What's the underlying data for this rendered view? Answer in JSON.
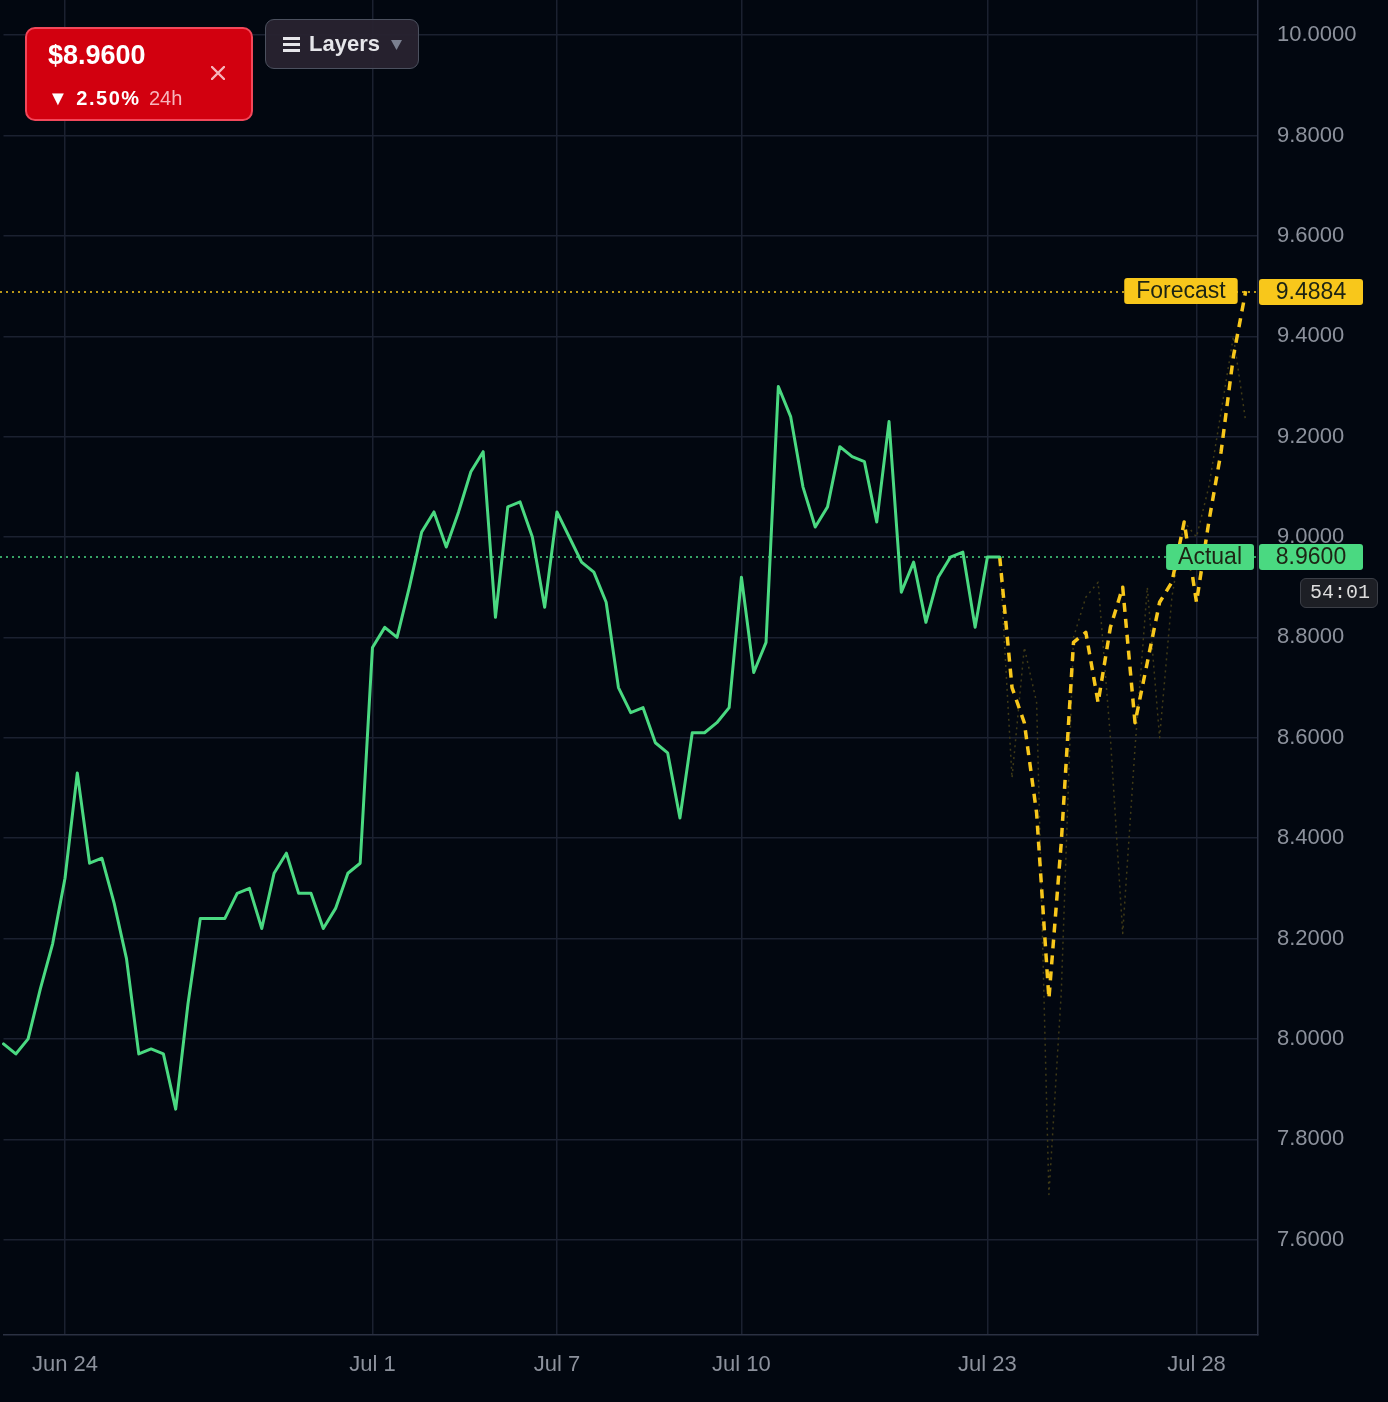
{
  "chart_data": {
    "type": "line",
    "categories": [
      null,
      null,
      null,
      null,
      null,
      "Jun 24",
      null,
      null,
      null,
      null,
      null,
      null,
      null,
      null,
      null,
      null,
      null,
      null,
      null,
      null,
      null,
      null,
      null,
      null,
      null,
      null,
      null,
      null,
      null,
      null,
      "Jul 1",
      null,
      null,
      null,
      null,
      null,
      null,
      null,
      null,
      null,
      null,
      null,
      null,
      null,
      null,
      "Jul 7",
      null,
      null,
      null,
      null,
      null,
      null,
      null,
      null,
      null,
      null,
      null,
      null,
      null,
      null,
      "Jul 10",
      null,
      null,
      null,
      null,
      null,
      null,
      null,
      null,
      null,
      null,
      null,
      null,
      null,
      null,
      null,
      null,
      null,
      null,
      null,
      "Jul 23",
      null,
      null,
      null,
      null,
      null,
      null,
      null,
      null,
      null,
      null,
      null,
      null,
      null,
      null,
      null,
      null,
      "Jul 28",
      null,
      null,
      null,
      null,
      null
    ],
    "series": [
      {
        "name": "Actual",
        "color": "#4ad981",
        "values": [
          7.99,
          7.97,
          8.0,
          8.1,
          8.19,
          8.32,
          8.53,
          8.35,
          8.36,
          8.27,
          8.16,
          7.97,
          7.98,
          7.97,
          7.86,
          8.07,
          8.24,
          8.24,
          8.24,
          8.29,
          8.3,
          8.22,
          8.33,
          8.37,
          8.29,
          8.29,
          8.22,
          8.26,
          8.33,
          8.35,
          8.78,
          8.82,
          8.8,
          8.9,
          9.01,
          9.05,
          8.98,
          9.05,
          9.13,
          9.17,
          8.84,
          9.06,
          9.07,
          9.0,
          8.86,
          9.05,
          9.0,
          8.95,
          8.93,
          8.87,
          8.7,
          8.65,
          8.66,
          8.59,
          8.57,
          8.44,
          8.61,
          8.61,
          8.63,
          8.66,
          8.92,
          8.73,
          8.79,
          9.3,
          9.24,
          9.1,
          9.02,
          9.06,
          9.18,
          9.16,
          9.15,
          9.03,
          9.23,
          8.89,
          8.95,
          8.83,
          8.92,
          8.96,
          8.97,
          8.82,
          8.96,
          8.96,
          null,
          null,
          null,
          null,
          null,
          null,
          null,
          null,
          null,
          null,
          null,
          null,
          null,
          null,
          null,
          null,
          null,
          null,
          null,
          null,
          null
        ]
      },
      {
        "name": "Forecast",
        "color": "#f8c71b",
        "line_style": "dashed",
        "values": [
          null,
          null,
          null,
          null,
          null,
          null,
          null,
          null,
          null,
          null,
          null,
          null,
          null,
          null,
          null,
          null,
          null,
          null,
          null,
          null,
          null,
          null,
          null,
          null,
          null,
          null,
          null,
          null,
          null,
          null,
          null,
          null,
          null,
          null,
          null,
          null,
          null,
          null,
          null,
          null,
          null,
          null,
          null,
          null,
          null,
          null,
          null,
          null,
          null,
          null,
          null,
          null,
          null,
          null,
          null,
          null,
          null,
          null,
          null,
          null,
          null,
          null,
          null,
          null,
          null,
          null,
          null,
          null,
          null,
          null,
          null,
          null,
          null,
          null,
          null,
          null,
          null,
          null,
          null,
          null,
          null,
          8.96,
          8.7,
          8.63,
          8.45,
          8.08,
          8.39,
          8.79,
          8.81,
          8.67,
          8.82,
          8.9,
          8.63,
          8.75,
          8.87,
          8.91,
          9.03,
          8.87,
          9.03,
          9.17,
          9.36,
          9.49,
          null
        ]
      },
      {
        "color": "#403b17",
        "line_style": "dotted",
        "values": [
          null,
          null,
          null,
          null,
          null,
          null,
          null,
          null,
          null,
          null,
          null,
          null,
          null,
          null,
          null,
          null,
          null,
          null,
          null,
          null,
          null,
          null,
          null,
          null,
          null,
          null,
          null,
          null,
          null,
          null,
          null,
          null,
          null,
          null,
          null,
          null,
          null,
          null,
          null,
          null,
          null,
          null,
          null,
          null,
          null,
          null,
          null,
          null,
          null,
          null,
          null,
          null,
          null,
          null,
          null,
          null,
          null,
          null,
          null,
          null,
          null,
          null,
          null,
          null,
          null,
          null,
          null,
          null,
          null,
          null,
          null,
          null,
          null,
          null,
          null,
          null,
          null,
          null,
          null,
          null,
          null,
          8.96,
          8.52,
          8.78,
          8.67,
          7.69,
          8.09,
          8.8,
          8.88,
          8.91,
          8.6,
          8.21,
          8.58,
          8.9,
          8.6,
          8.88,
          9.03,
          9.0,
          9.1,
          9.25,
          9.4,
          9.23,
          null
        ]
      }
    ],
    "ylim": [
      7.41,
      10.07
    ],
    "yticks": [
      {
        "value": 7.6,
        "label": "7.6000"
      },
      {
        "value": 7.8,
        "label": "7.8000"
      },
      {
        "value": 8.0,
        "label": "8.0000"
      },
      {
        "value": 8.2,
        "label": "8.2000"
      },
      {
        "value": 8.4,
        "label": "8.4000"
      },
      {
        "value": 8.6,
        "label": "8.6000"
      },
      {
        "value": 8.8,
        "label": "8.8000"
      },
      {
        "value": 9.0,
        "label": "9.0000"
      },
      {
        "value": 9.2,
        "label": "9.2000"
      },
      {
        "value": 9.4,
        "label": "9.4000"
      },
      {
        "value": 9.6,
        "label": "9.6000"
      },
      {
        "value": 9.8,
        "label": "9.8000"
      },
      {
        "value": 10.0,
        "label": "10.0000"
      }
    ],
    "grid": true,
    "ref_lines": [
      {
        "axis": "y",
        "value": 9.4884,
        "label": "9.4884",
        "color": "#f8c71b",
        "line_style": "dotted"
      },
      {
        "axis": "y",
        "value": 8.96,
        "label": "8.9600",
        "color": "#4ad981",
        "line_style": "dotted"
      }
    ],
    "annotations": [
      "$8.9600",
      "▼ 2.50%",
      "24h",
      "Layers",
      "54:01"
    ]
  }
}
